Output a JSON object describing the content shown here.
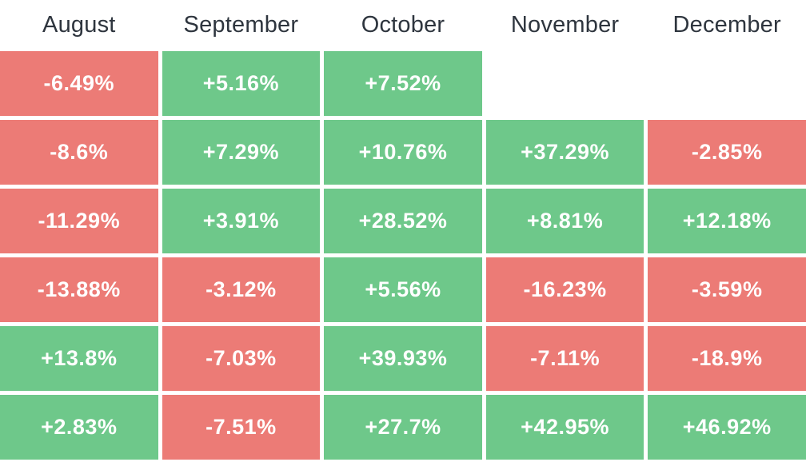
{
  "colors": {
    "positive_cell": "#6ec88a",
    "negative_cell": "#ec7b76",
    "header_text": "#2e353e",
    "cell_text": "#ffffff",
    "background": "#ffffff"
  },
  "chart_data": {
    "type": "heatmap",
    "title": "",
    "columns": [
      "August",
      "September",
      "October",
      "November",
      "December"
    ],
    "rows": [
      [
        "-6.49%",
        "+5.16%",
        "+7.52%",
        null,
        null
      ],
      [
        "-8.6%",
        "+7.29%",
        "+10.76%",
        "+37.29%",
        "-2.85%"
      ],
      [
        "-11.29%",
        "+3.91%",
        "+28.52%",
        "+8.81%",
        "+12.18%"
      ],
      [
        "-13.88%",
        "-3.12%",
        "+5.56%",
        "-16.23%",
        "-3.59%"
      ],
      [
        "+13.8%",
        "-7.03%",
        "+39.93%",
        "-7.11%",
        "-18.9%"
      ],
      [
        "+2.83%",
        "-7.51%",
        "+27.7%",
        "+42.95%",
        "+46.92%"
      ]
    ],
    "values": [
      [
        -6.49,
        5.16,
        7.52,
        null,
        null
      ],
      [
        -8.6,
        7.29,
        10.76,
        37.29,
        -2.85
      ],
      [
        -11.29,
        3.91,
        28.52,
        8.81,
        12.18
      ],
      [
        -13.88,
        -3.12,
        5.56,
        -16.23,
        -3.59
      ],
      [
        13.8,
        -7.03,
        39.93,
        -7.11,
        -18.9
      ],
      [
        2.83,
        -7.51,
        27.7,
        42.95,
        46.92
      ]
    ],
    "color_rule": "positive values green, negative values red, missing values blank",
    "legend_position": "none",
    "grid": "off"
  }
}
